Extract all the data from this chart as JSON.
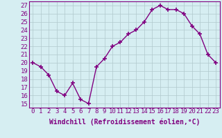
{
  "x": [
    0,
    1,
    2,
    3,
    4,
    5,
    6,
    7,
    8,
    9,
    10,
    11,
    12,
    13,
    14,
    15,
    16,
    17,
    18,
    19,
    20,
    21,
    22,
    23
  ],
  "y": [
    20,
    19.5,
    18.5,
    16.5,
    16,
    17.5,
    15.5,
    15,
    19.5,
    20.5,
    22,
    22.5,
    23.5,
    24,
    25,
    26.5,
    27,
    26.5,
    26.5,
    26,
    24.5,
    23.5,
    21,
    20
  ],
  "line_color": "#800080",
  "marker": "+",
  "marker_size": 4,
  "bg_color": "#d6eef2",
  "grid_color": "#b0c8cc",
  "spine_color": "#800080",
  "xlabel": "Windchill (Refroidissement éolien,°C)",
  "ylabel_ticks": [
    15,
    16,
    17,
    18,
    19,
    20,
    21,
    22,
    23,
    24,
    25,
    26,
    27
  ],
  "xlim": [
    -0.5,
    23.5
  ],
  "ylim": [
    14.5,
    27.5
  ],
  "xlabel_fontsize": 7,
  "tick_fontsize": 6.5
}
